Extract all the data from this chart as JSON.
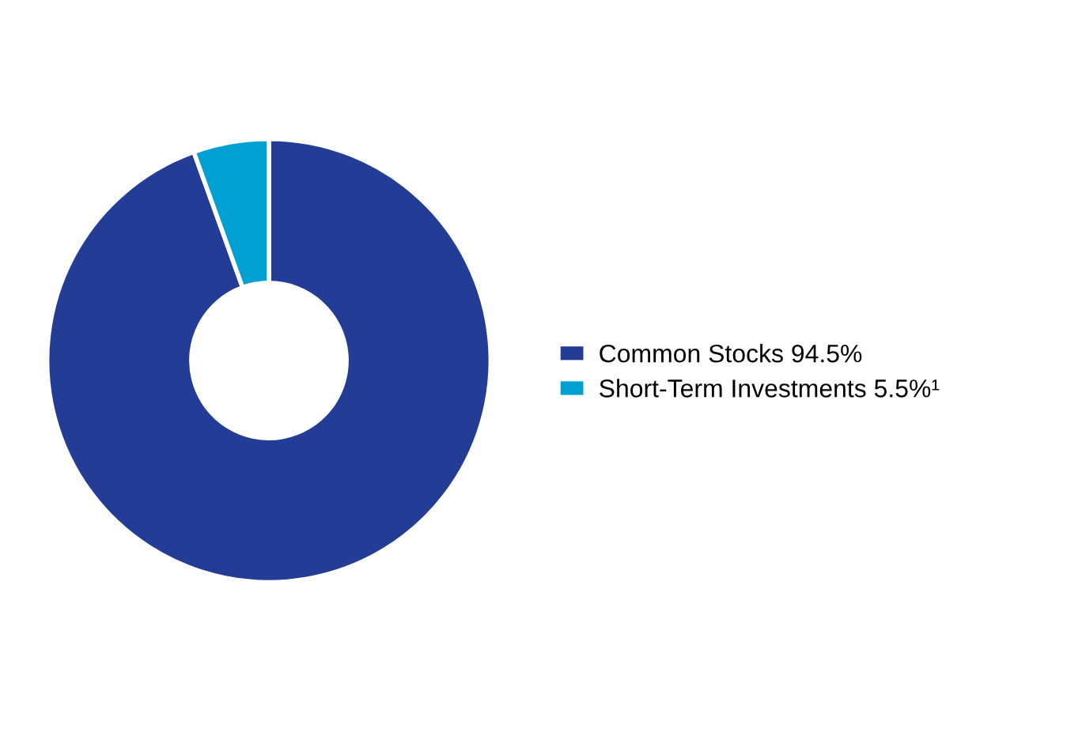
{
  "chart_data": {
    "type": "donut",
    "categories": [
      "Common Stocks",
      "Short-Term Investments"
    ],
    "values": [
      94.5,
      5.5
    ],
    "value_labels": [
      "94.5%",
      "5.5%¹"
    ],
    "colors": [
      "#233c96",
      "#00a0d2"
    ],
    "legend": "right"
  }
}
